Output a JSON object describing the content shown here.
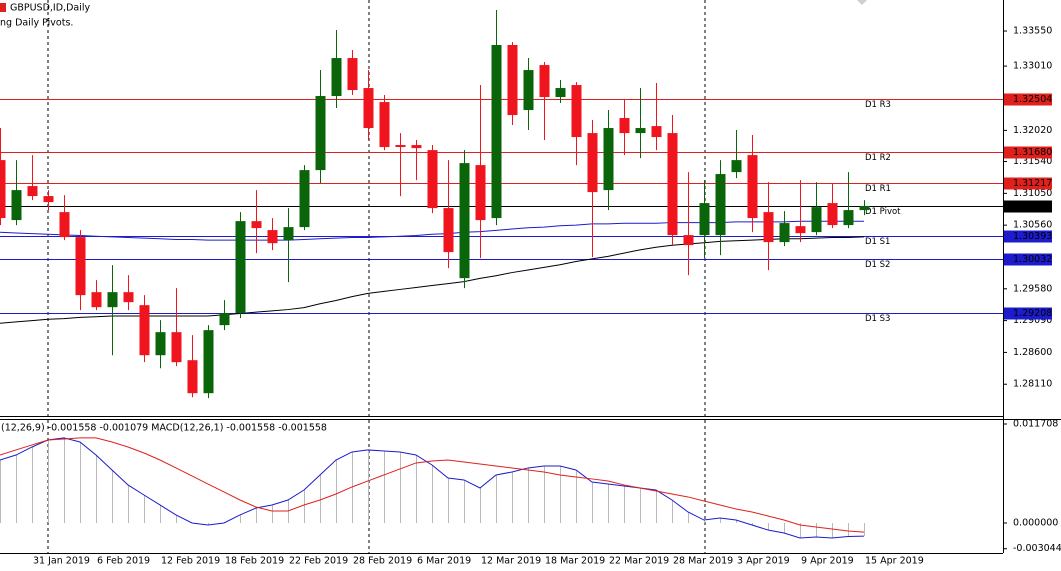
{
  "chart_data": [
    {
      "type": "candlestick",
      "title": "GBPUSD,ID,Daily",
      "subtitle": "ng Daily Pivots.",
      "categories": [
        null,
        null,
        "31 Jan 2019",
        null,
        null,
        null,
        "6 Feb 2019",
        null,
        null,
        null,
        "12 Feb 2019",
        null,
        null,
        null,
        "18 Feb 2019",
        null,
        null,
        null,
        "22 Feb 2019",
        null,
        null,
        null,
        "28 Feb 2019",
        null,
        null,
        null,
        "6 Mar 2019",
        null,
        null,
        null,
        "12 Mar 2019",
        null,
        null,
        null,
        "18 Mar 2019",
        null,
        null,
        null,
        "22 Mar 2019",
        null,
        null,
        null,
        "28 Mar 2019",
        null,
        null,
        null,
        "3 Apr 2019",
        null,
        null,
        null,
        "9 Apr 2019",
        null,
        null,
        null,
        "15 Apr 2019"
      ],
      "open": [
        1.31562,
        1.30638,
        1.31162,
        1.31008,
        1.30761,
        1.30376,
        1.29528,
        1.29297,
        1.29528,
        1.29328,
        1.28557,
        1.28912,
        1.2848,
        1.27972,
        1.2902,
        1.29205,
        1.30622,
        1.30484,
        1.3033,
        1.3053,
        1.31408,
        1.32549,
        1.33134,
        1.32672,
        1.32456,
        1.31794,
        1.31794,
        1.31716,
        1.30823,
        1.29744,
        1.31485,
        1.30669,
        1.33335,
        1.32333,
        1.33026,
        1.32533,
        1.32718,
        1.31978,
        1.311,
        1.3221,
        1.31978,
        1.32086,
        1.31978,
        1.30407,
        1.30407,
        1.30407,
        1.31377,
        1.31639,
        1.30761,
        1.30299,
        1.30545,
        1.30453,
        1.309,
        1.30561,
        1.30792
      ],
      "high": [
        1.32056,
        1.31562,
        1.31639,
        1.311,
        1.31023,
        1.30484,
        1.29713,
        1.29944,
        1.2979,
        1.29482,
        1.29097,
        1.2959,
        1.28866,
        1.2902,
        1.29405,
        1.30761,
        1.311,
        1.30669,
        1.30823,
        1.31485,
        1.32949,
        1.33566,
        1.33257,
        1.32949,
        1.32564,
        1.31978,
        1.31871,
        1.31794,
        1.31562,
        1.31716,
        1.32718,
        1.33874,
        1.33381,
        1.33134,
        1.33073,
        1.32795,
        1.32764,
        1.32179,
        1.32333,
        1.32487,
        1.32672,
        1.32749,
        1.32256,
        1.31377,
        1.31254,
        1.31562,
        1.32025,
        1.31948,
        1.31223,
        1.30776,
        1.31254,
        1.31223,
        1.31208,
        1.31377,
        1.30946
      ],
      "low": [
        1.30561,
        1.30561,
        1.30946,
        1.30792,
        1.3033,
        1.29251,
        1.29251,
        1.28557,
        1.29251,
        1.2845,
        1.28357,
        1.28388,
        1.2791,
        1.27895,
        1.28943,
        1.29128,
        1.30129,
        1.30175,
        1.29682,
        1.30484,
        1.31208,
        1.32364,
        1.32564,
        1.31871,
        1.31716,
        1.31008,
        1.31254,
        1.30746,
        1.29898,
        1.2959,
        1.30052,
        1.30561,
        1.32102,
        1.32025,
        1.31871,
        1.32441,
        1.31485,
        1.30068,
        1.30792,
        1.31639,
        1.31593,
        1.31716,
        1.30253,
        1.2979,
        1.30052,
        1.30098,
        1.31285,
        1.30453,
        1.29867,
        1.30237,
        1.30299,
        1.30407,
        1.30515,
        1.30515,
        1.30715
      ],
      "close": [
        1.30669,
        1.311,
        1.31008,
        1.30915,
        1.30376,
        1.29482,
        1.29297,
        1.29528,
        1.29374,
        1.28557,
        1.28912,
        1.2845,
        1.27972,
        1.28943,
        1.29205,
        1.30622,
        1.30515,
        1.30283,
        1.3053,
        1.31408,
        1.32549,
        1.33134,
        1.32641,
        1.32056,
        1.31763,
        1.31763,
        1.31747,
        1.30823,
        1.30145,
        1.31516,
        1.30638,
        1.33335,
        1.32256,
        1.32949,
        1.32533,
        1.32672,
        1.31917,
        1.31069,
        1.32056,
        1.31978,
        1.32056,
        1.31917,
        1.30407,
        1.30253,
        1.309,
        1.31347,
        1.31562,
        1.30669,
        1.30299,
        1.30592,
        1.30437,
        1.30838,
        1.30561,
        1.30792,
        1.30856
      ],
      "up_color": "#0a640a",
      "down_color": "#f0141e",
      "lines": [
        {
          "color": "#1c1ccc",
          "values": [
            1.3045,
            1.3044,
            1.3043,
            1.3042,
            1.3041,
            1.304,
            1.3039,
            1.3038,
            1.3037,
            1.3036,
            1.3035,
            1.3034,
            1.3034,
            1.3033,
            1.3033,
            1.3033,
            1.3033,
            1.3033,
            1.3033,
            1.3034,
            1.3035,
            1.3036,
            1.3037,
            1.3037,
            1.3038,
            1.3039,
            1.304,
            1.3042,
            1.3043,
            1.3045,
            1.3046,
            1.3048,
            1.305,
            1.3052,
            1.3053,
            1.3055,
            1.3056,
            1.3058,
            1.3058,
            1.3059,
            1.3059,
            1.3059,
            1.306,
            1.306,
            1.306,
            1.306,
            1.3061,
            1.3061,
            1.3061,
            1.3061,
            1.3062,
            1.3062,
            1.3062,
            1.3062,
            1.3062
          ]
        },
        {
          "color": "#000000",
          "values": [
            1.2905,
            1.2907,
            1.2909,
            1.2911,
            1.2912,
            1.2914,
            1.2915,
            1.2916,
            1.2916,
            1.2916,
            1.2916,
            1.2916,
            1.2916,
            1.2916,
            1.2918,
            1.292,
            1.2922,
            1.2924,
            1.2926,
            1.2929,
            1.2935,
            1.294,
            1.2946,
            1.2951,
            1.2954,
            1.2957,
            1.296,
            1.2963,
            1.2966,
            1.2969,
            1.2974,
            1.2978,
            1.2983,
            1.2987,
            1.2991,
            1.2995,
            1.3,
            1.3004,
            1.3008,
            1.3013,
            1.3018,
            1.3022,
            1.3025,
            1.3027,
            1.3029,
            1.3031,
            1.3032,
            1.3033,
            1.3034,
            1.3035,
            1.3035,
            1.3036,
            1.3037,
            1.3037,
            1.3038
          ]
        }
      ],
      "levels": {
        "labels": [
          "D1 R3",
          "D1 R2",
          "D1 R1",
          "D1 Pivot",
          "D1 S1",
          "D1 S2",
          "D1 S3"
        ],
        "values": [
          1.32504,
          1.3168,
          1.31217,
          1.30856,
          1.30393,
          1.30032,
          1.29208
        ],
        "value_labels": [
          "1.32504",
          "1.31680",
          "1.31217",
          "1.30856",
          "1.30393",
          "1.30032",
          "1.29208"
        ],
        "colors": [
          "#e0201c",
          "#e0201c",
          "#e0201c",
          "#000000",
          "#1c1ccc",
          "#1c1ccc",
          "#1c1ccc"
        ]
      },
      "ylim": [
        1.27636,
        1.34028
      ],
      "yticks": [
        {
          "value": 1.3355,
          "label": "1.33550"
        },
        {
          "value": 1.3301,
          "label": "1.33010"
        },
        {
          "value": 1.3202,
          "label": "1.32020"
        },
        {
          "value": 1.3154,
          "label": "1.31540"
        },
        {
          "value": 1.3105,
          "label": "1.31050"
        },
        {
          "value": 1.3056,
          "label": "1.30560"
        },
        {
          "value": 1.2958,
          "label": "1.29580"
        },
        {
          "value": 1.2909,
          "label": "1.29090"
        },
        {
          "value": 1.286,
          "label": "1.28600"
        },
        {
          "value": 1.2811,
          "label": "1.28110"
        }
      ]
    },
    {
      "type": "macd",
      "title": "(12,26,9) -0.001558 -0.001079 MACD(12,26,1) -0.001558 -0.001558",
      "macd": {
        "bar_color": "#b9b9b9",
        "line_color": "#1c1ccc",
        "values": [
          0.00745,
          0.00804,
          0.00899,
          0.00982,
          0.01006,
          0.00958,
          0.00804,
          0.00627,
          0.0045,
          0.00331,
          0.00213,
          0.00095,
          0,
          -0.00024,
          0,
          0.00095,
          0.00177,
          0.00213,
          0.00272,
          0.0039,
          0.00568,
          0.00745,
          0.0084,
          0.00864,
          0.00852,
          0.0084,
          0.00804,
          0.00686,
          0.00532,
          0.00509,
          0.00414,
          0.00568,
          0.00603,
          0.00651,
          0.00674,
          0.00674,
          0.00627,
          0.00485,
          0.00461,
          0.00438,
          0.00414,
          0.0039,
          0.00272,
          0.0013,
          0.00035,
          0.00059,
          0.00035,
          -0.00024,
          -0.00083,
          -0.00118,
          -0.00177,
          -0.00166,
          -0.00177,
          -0.0016,
          -0.001558
        ]
      },
      "signal": {
        "color": "#e0201c",
        "values": [
          0.00804,
          0.00864,
          0.00923,
          0.00982,
          0.00994,
          0.01006,
          0.01006,
          0.00958,
          0.00899,
          0.00828,
          0.00745,
          0.00651,
          0.00556,
          0.00461,
          0.00367,
          0.00272,
          0.00189,
          0.00142,
          0.00142,
          0.00213,
          0.00272,
          0.00343,
          0.00426,
          0.00497,
          0.00568,
          0.00639,
          0.0071,
          0.00733,
          0.00745,
          0.00722,
          0.00698,
          0.00674,
          0.00651,
          0.00627,
          0.00603,
          0.00568,
          0.00544,
          0.00521,
          0.00497,
          0.0045,
          0.00414,
          0.00379,
          0.00343,
          0.00308,
          0.0026,
          0.00213,
          0.00166,
          0.0013,
          0.00083,
          0.00035,
          -0.00024,
          -0.00047,
          -0.00071,
          -0.00095,
          -0.001079
        ]
      },
      "ylim": [
        -0.003431,
        0.012181
      ],
      "yticks": [
        0.011708,
        {
          "value": 0,
          "label": "0.000000"
        },
        -0.003044
      ]
    }
  ]
}
